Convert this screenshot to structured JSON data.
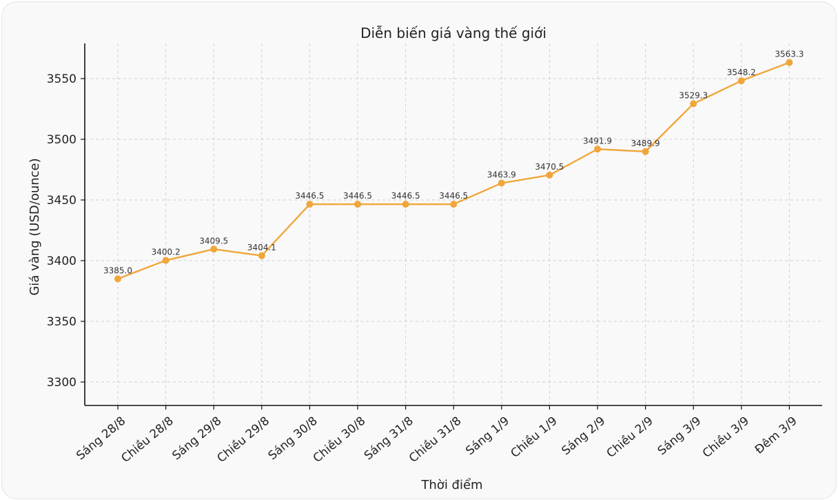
{
  "chart_data": {
    "type": "line",
    "title": "Diễn biến giá vàng thế giới",
    "xlabel": "Thời điểm",
    "ylabel": "Giá vàng (USD/ounce)",
    "categories": [
      "Sáng 28/8",
      "Chiều 28/8",
      "Sáng 29/8",
      "Chiều 29/8",
      "Sáng 30/8",
      "Chiều 30/8",
      "Sáng 31/8",
      "Chiều 31/8",
      "Sáng 1/9",
      "Chiều 1/9",
      "Sáng 2/9",
      "Chiều 2/9",
      "Sáng 3/9",
      "Chiều 3/9",
      "Đêm 3/9"
    ],
    "series": [
      {
        "values": [
          3385.0,
          3400.2,
          3409.5,
          3404.1,
          3446.5,
          3446.5,
          3446.5,
          3446.5,
          3463.9,
          3470.5,
          3491.9,
          3489.9,
          3529.3,
          3548.2,
          3563.3
        ],
        "data_labels": [
          "3385.0",
          "3400.2",
          "3409.5",
          "3404.1",
          "3446.5",
          "3446.5",
          "3446.5",
          "3446.5",
          "3463.9",
          "3470.5",
          "3491.9",
          "3489.9",
          "3529.3",
          "3548.2",
          "3563.3"
        ]
      }
    ],
    "yticks": [
      3300,
      3350,
      3400,
      3450,
      3500,
      3550
    ],
    "ylim": [
      3280,
      3572
    ],
    "grid": true,
    "color": "#f0a63a"
  }
}
